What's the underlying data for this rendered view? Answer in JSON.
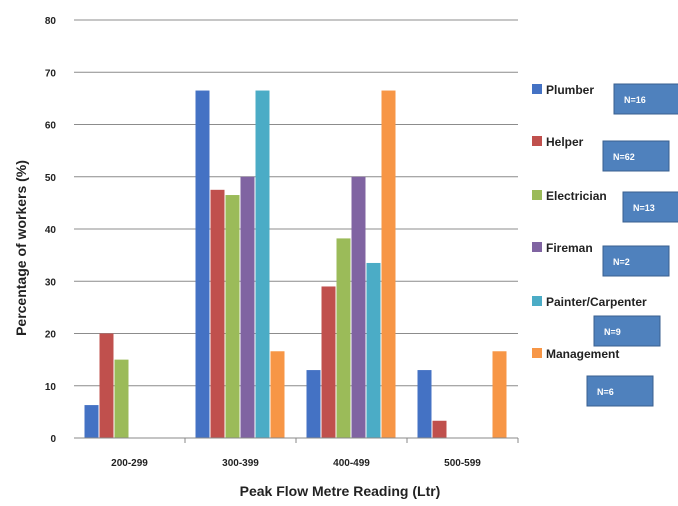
{
  "chart_data": {
    "type": "bar",
    "categories": [
      "200-299",
      "300-399",
      "400-499",
      "500-599"
    ],
    "series": [
      {
        "name": "Plumber",
        "values": [
          6.3,
          66.5,
          13,
          13
        ],
        "color": "#4472c4",
        "n_label": "N=16"
      },
      {
        "name": "Helper",
        "values": [
          20,
          47.5,
          29,
          3.3
        ],
        "color": "#c0504d",
        "n_label": "N=62"
      },
      {
        "name": "Electrician",
        "values": [
          15,
          46.5,
          38.2,
          0
        ],
        "color": "#9bbb59",
        "n_label": "N=13"
      },
      {
        "name": "Fireman",
        "values": [
          0,
          50,
          50,
          0
        ],
        "color": "#8064a2",
        "n_label": "N=2"
      },
      {
        "name": "Painter/Carpenter",
        "values": [
          0,
          66.5,
          33.5,
          0
        ],
        "color": "#4bacc6",
        "n_label": "N=9"
      },
      {
        "name": "Management",
        "values": [
          0,
          16.6,
          66.5,
          16.6
        ],
        "color": "#f79646",
        "n_label": "N=6"
      }
    ],
    "xlabel": "Peak Flow Metre Reading (Ltr)",
    "ylabel": "Percentage of workers (%)",
    "ylim": [
      0,
      80
    ],
    "yticks": [
      "0",
      "10",
      "20",
      "30",
      "40",
      "50",
      "60",
      "70",
      "80"
    ],
    "grid": true,
    "legend": "right",
    "n_box_color": "#4f81bd"
  }
}
